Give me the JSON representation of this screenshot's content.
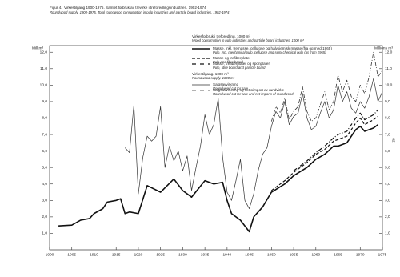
{
  "chart_data": {
    "type": "line",
    "figure_label": "Figur 4.",
    "title": "Virkestilgang 1900-1975. Samlet forbruk av trevirke i treforedlingsindustrien. 1902-1974",
    "subtitle": "Roundwood supply, 1900-1975. Total roundwood consumption in pulp industries and particle board industries. 1902-1974",
    "ylabel": "Mill.m³",
    "y2label": "Millions m³",
    "page_number": "82",
    "legend_headers": [
      {
        "text": "Virkesforbruk i treforedling. 1000 m³",
        "text_en": "Wood consumption in pulp industries and particle board industries. 1000 m³"
      },
      {
        "text": "Virkestilgang. 1000 m³",
        "text_en": "Roundwood supply. 1000 m³"
      }
    ],
    "xlim": [
      1900,
      1975
    ],
    "xticks": [
      1900,
      1905,
      1910,
      1915,
      1920,
      1925,
      1930,
      1935,
      1940,
      1945,
      1950,
      1955,
      1960,
      1965,
      1970,
      1975
    ],
    "ylim": [
      0,
      12.4
    ],
    "yticks": [
      {
        "value": 1,
        "label": "1,0"
      },
      {
        "value": 2,
        "label": "2,0"
      },
      {
        "value": 3,
        "label": "3,0"
      },
      {
        "value": 4,
        "label": "4,0"
      },
      {
        "value": 5,
        "label": "5,0"
      },
      {
        "value": 6,
        "label": "6,0"
      },
      {
        "value": 7,
        "label": "7,0"
      },
      {
        "value": 8,
        "label": "8,0"
      },
      {
        "value": 9,
        "label": "9,0"
      },
      {
        "value": 10,
        "label": "10,0"
      },
      {
        "value": 11,
        "label": "11,0"
      },
      {
        "value": 12,
        "label": "12,0"
      }
    ],
    "y2lim": [
      0,
      12.4
    ],
    "y2ticks": [
      {
        "value": 1,
        "label": "1,0"
      },
      {
        "value": 2,
        "label": "2,0"
      },
      {
        "value": 3,
        "label": "3,0"
      },
      {
        "value": 4,
        "label": "4,0"
      },
      {
        "value": 5,
        "label": "5,0"
      },
      {
        "value": 6,
        "label": "6,0"
      },
      {
        "value": 7,
        "label": "7,0"
      },
      {
        "value": 8,
        "label": "8,0"
      },
      {
        "value": 9,
        "label": "9,0"
      },
      {
        "value": 10,
        "label": "10,0"
      },
      {
        "value": 11,
        "label": "11,0"
      },
      {
        "value": 12,
        "label": "12,0"
      }
    ],
    "series": [
      {
        "name": "Masse, inkl. tremasse, cellulose og halvkjemisk masse (fra og med 1965)",
        "name_en": "Pulp, incl. mechanical pulp, cellulose and semi chemical pulp (as from 1965)",
        "color": "#111111",
        "style": "solid",
        "width": 1.6,
        "x": [
          1902,
          1905,
          1907,
          1909,
          1910,
          1912,
          1913,
          1915,
          1916,
          1917,
          1918,
          1920,
          1922,
          1925,
          1928,
          1930,
          1932,
          1935,
          1937,
          1939,
          1940,
          1941,
          1943,
          1945,
          1946,
          1948,
          1950,
          1953,
          1955,
          1958,
          1960,
          1962,
          1964,
          1965,
          1967,
          1969,
          1970,
          1971,
          1973,
          1974
        ],
        "values": [
          1.45,
          1.5,
          1.8,
          1.9,
          2.2,
          2.5,
          2.9,
          3.0,
          3.1,
          2.2,
          2.3,
          2.2,
          3.9,
          3.5,
          4.3,
          3.6,
          3.2,
          4.2,
          4.0,
          4.1,
          3.0,
          2.2,
          1.8,
          1.1,
          2.0,
          2.6,
          3.5,
          4.0,
          4.5,
          5.0,
          5.5,
          5.8,
          6.3,
          6.3,
          6.5,
          7.3,
          7.5,
          7.2,
          7.4,
          7.6
        ]
      },
      {
        "name": "Masse og trefiberplater",
        "name_en": "Pulp and fibre board",
        "color": "#111111",
        "style": "dashed",
        "width": 1.2,
        "x": [
          1950,
          1953,
          1955,
          1958,
          1960,
          1962,
          1964,
          1965,
          1967,
          1969,
          1970,
          1971,
          1973,
          1974
        ],
        "values": [
          3.6,
          4.2,
          4.7,
          5.3,
          5.8,
          6.1,
          6.6,
          6.7,
          6.9,
          7.7,
          8.0,
          7.6,
          7.9,
          8.1
        ]
      },
      {
        "name": "Masse, trefiberplater og sponplater",
        "name_en": "Pulp, fibre board and particle board",
        "color": "#111111",
        "style": "dashdot",
        "width": 1.2,
        "x": [
          1955,
          1958,
          1960,
          1962,
          1964,
          1965,
          1967,
          1969,
          1970,
          1971,
          1973,
          1974
        ],
        "values": [
          4.8,
          5.4,
          5.9,
          6.3,
          6.8,
          7.0,
          7.2,
          8.0,
          8.3,
          7.9,
          8.2,
          8.5
        ]
      },
      {
        "name": "Salgsavvirkning",
        "name_en": "Roundwood cut for sale",
        "color": "#333333",
        "style": "solid",
        "width": 0.7,
        "x": [
          1917,
          1918,
          1919,
          1920,
          1921,
          1922,
          1923,
          1924,
          1925,
          1926,
          1927,
          1928,
          1929,
          1930,
          1931,
          1932,
          1933,
          1934,
          1935,
          1936,
          1937,
          1938,
          1939,
          1940,
          1941,
          1942,
          1943,
          1944,
          1945,
          1946,
          1947,
          1948,
          1949,
          1950,
          1951,
          1952,
          1953,
          1954,
          1955,
          1956,
          1957,
          1958,
          1959,
          1960,
          1961,
          1962,
          1963,
          1964,
          1965,
          1966,
          1967,
          1968,
          1969,
          1970,
          1971,
          1972,
          1973,
          1974,
          1975
        ],
        "values": [
          6.2,
          5.9,
          8.8,
          3.4,
          5.6,
          6.9,
          6.6,
          6.9,
          8.7,
          5.0,
          6.3,
          5.4,
          6.0,
          4.8,
          5.7,
          3.6,
          5.0,
          6.3,
          8.2,
          7.0,
          7.6,
          9.2,
          5.6,
          3.5,
          3.0,
          4.2,
          5.5,
          3.0,
          2.5,
          3.4,
          4.8,
          5.8,
          6.2,
          7.5,
          8.4,
          8.0,
          9.0,
          7.6,
          8.1,
          8.3,
          9.5,
          8.0,
          7.3,
          7.5,
          8.3,
          9.0,
          8.0,
          8.5,
          10.0,
          9.0,
          9.6,
          8.6,
          8.3,
          9.0,
          8.6,
          9.3,
          10.4,
          9.0,
          9.6
        ]
      },
      {
        "name": "Salgsavvirkning og nettoimport av rundvirke",
        "name_en": "Roundwood cut for sale and net imports of roundwood",
        "color": "#333333",
        "style": "dashdot",
        "width": 0.8,
        "x": [
          1950,
          1951,
          1952,
          1953,
          1954,
          1955,
          1956,
          1957,
          1958,
          1959,
          1960,
          1961,
          1962,
          1963,
          1964,
          1965,
          1966,
          1967,
          1968,
          1969,
          1970,
          1971,
          1972,
          1973,
          1974,
          1975
        ],
        "values": [
          7.8,
          8.7,
          8.3,
          9.2,
          7.9,
          8.4,
          8.7,
          9.9,
          8.4,
          7.8,
          8.0,
          8.8,
          9.6,
          8.5,
          9.0,
          10.6,
          9.6,
          10.3,
          9.3,
          9.0,
          10.0,
          9.5,
          10.5,
          12.0,
          10.5,
          10.9
        ]
      }
    ]
  }
}
